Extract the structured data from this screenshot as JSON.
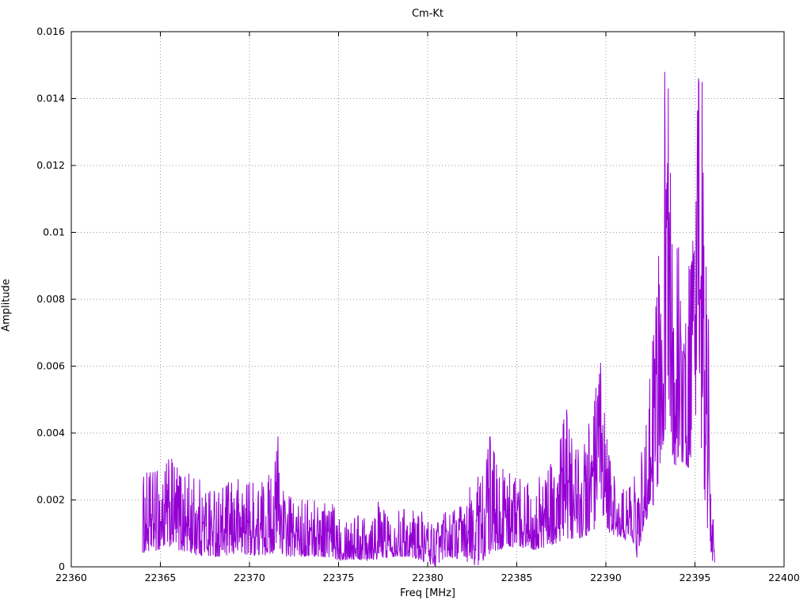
{
  "chart_data": {
    "type": "line",
    "title": "Cm-Kt",
    "xlabel": "Freq [MHz]",
    "ylabel": "Amplitude",
    "xlim": [
      22360,
      22400
    ],
    "ylim": [
      0,
      0.016
    ],
    "xticks": [
      22360,
      22365,
      22370,
      22375,
      22380,
      22385,
      22390,
      22395,
      22400
    ],
    "yticks": [
      0,
      0.002,
      0.004,
      0.006,
      0.008,
      0.01,
      0.012,
      0.014,
      0.016
    ],
    "grid": "dotted-major",
    "legend": "none",
    "line_color": "#9400d3",
    "series": [
      {
        "name": "Cm-Kt",
        "x_start": 22364.0,
        "x_end": 22396.1,
        "sample_step": 0.02,
        "noise_seed": 1234,
        "envelope": [
          [
            22364.0,
            0.0004,
            0.0028
          ],
          [
            22365.0,
            0.0005,
            0.003
          ],
          [
            22365.5,
            0.0006,
            0.0033
          ],
          [
            22366.5,
            0.0004,
            0.0029
          ],
          [
            22367.5,
            0.0003,
            0.0026
          ],
          [
            22368.5,
            0.0003,
            0.0024
          ],
          [
            22369.5,
            0.0004,
            0.0028
          ],
          [
            22370.5,
            0.0003,
            0.0026
          ],
          [
            22371.3,
            0.0004,
            0.003
          ],
          [
            22371.6,
            0.0005,
            0.0039
          ],
          [
            22372.0,
            0.0003,
            0.0022
          ],
          [
            22373.0,
            0.0003,
            0.002
          ],
          [
            22374.0,
            0.0003,
            0.0022
          ],
          [
            22375.0,
            0.0002,
            0.0018
          ],
          [
            22376.0,
            0.0002,
            0.0016
          ],
          [
            22377.0,
            0.0002,
            0.0021
          ],
          [
            22378.0,
            0.0003,
            0.0017
          ],
          [
            22379.0,
            0.0003,
            0.0018
          ],
          [
            22380.0,
            0.0001,
            0.0016
          ],
          [
            22380.4,
            0.0,
            0.0014
          ],
          [
            22381.0,
            0.0003,
            0.0017
          ],
          [
            22382.0,
            0.0002,
            0.002
          ],
          [
            22382.8,
            0.0,
            0.003
          ],
          [
            22383.5,
            0.0004,
            0.0039
          ],
          [
            22384.0,
            0.0005,
            0.003
          ],
          [
            22385.0,
            0.0006,
            0.0028
          ],
          [
            22386.0,
            0.0005,
            0.0026
          ],
          [
            22386.8,
            0.0006,
            0.003
          ],
          [
            22387.8,
            0.0008,
            0.0047
          ],
          [
            22388.5,
            0.0008,
            0.0036
          ],
          [
            22389.2,
            0.001,
            0.0047
          ],
          [
            22389.7,
            0.0012,
            0.0061
          ],
          [
            22390.2,
            0.001,
            0.0035
          ],
          [
            22390.8,
            0.0008,
            0.0022
          ],
          [
            22391.5,
            0.0008,
            0.0028
          ],
          [
            22391.85,
            0.0,
            0.0025
          ],
          [
            22392.1,
            0.0012,
            0.0045
          ],
          [
            22392.4,
            0.0015,
            0.0053
          ],
          [
            22392.8,
            0.002,
            0.008
          ],
          [
            22393.1,
            0.003,
            0.0115
          ],
          [
            22393.3,
            0.004,
            0.0148
          ],
          [
            22393.5,
            0.0035,
            0.0143
          ],
          [
            22393.8,
            0.003,
            0.0105
          ],
          [
            22394.2,
            0.003,
            0.0097
          ],
          [
            22394.6,
            0.0028,
            0.009
          ],
          [
            22395.0,
            0.0035,
            0.012
          ],
          [
            22395.2,
            0.004,
            0.0146
          ],
          [
            22395.4,
            0.003,
            0.0145
          ],
          [
            22395.7,
            0.001,
            0.0074
          ],
          [
            22395.9,
            0.0002,
            0.003
          ],
          [
            22396.1,
            0.0,
            0.0008
          ]
        ],
        "peaks": [
          [
            22371.6,
            0.0039
          ],
          [
            22383.5,
            0.0039
          ],
          [
            22387.8,
            0.0047
          ],
          [
            22389.7,
            0.0061
          ],
          [
            22393.3,
            0.0148
          ],
          [
            22393.5,
            0.0143
          ],
          [
            22395.2,
            0.0146
          ],
          [
            22395.4,
            0.0145
          ],
          [
            22395.75,
            0.0074
          ]
        ]
      }
    ]
  },
  "colors": {
    "grid": "#9a9a9a",
    "axis": "#000000",
    "text": "#000000",
    "background": "#ffffff"
  }
}
